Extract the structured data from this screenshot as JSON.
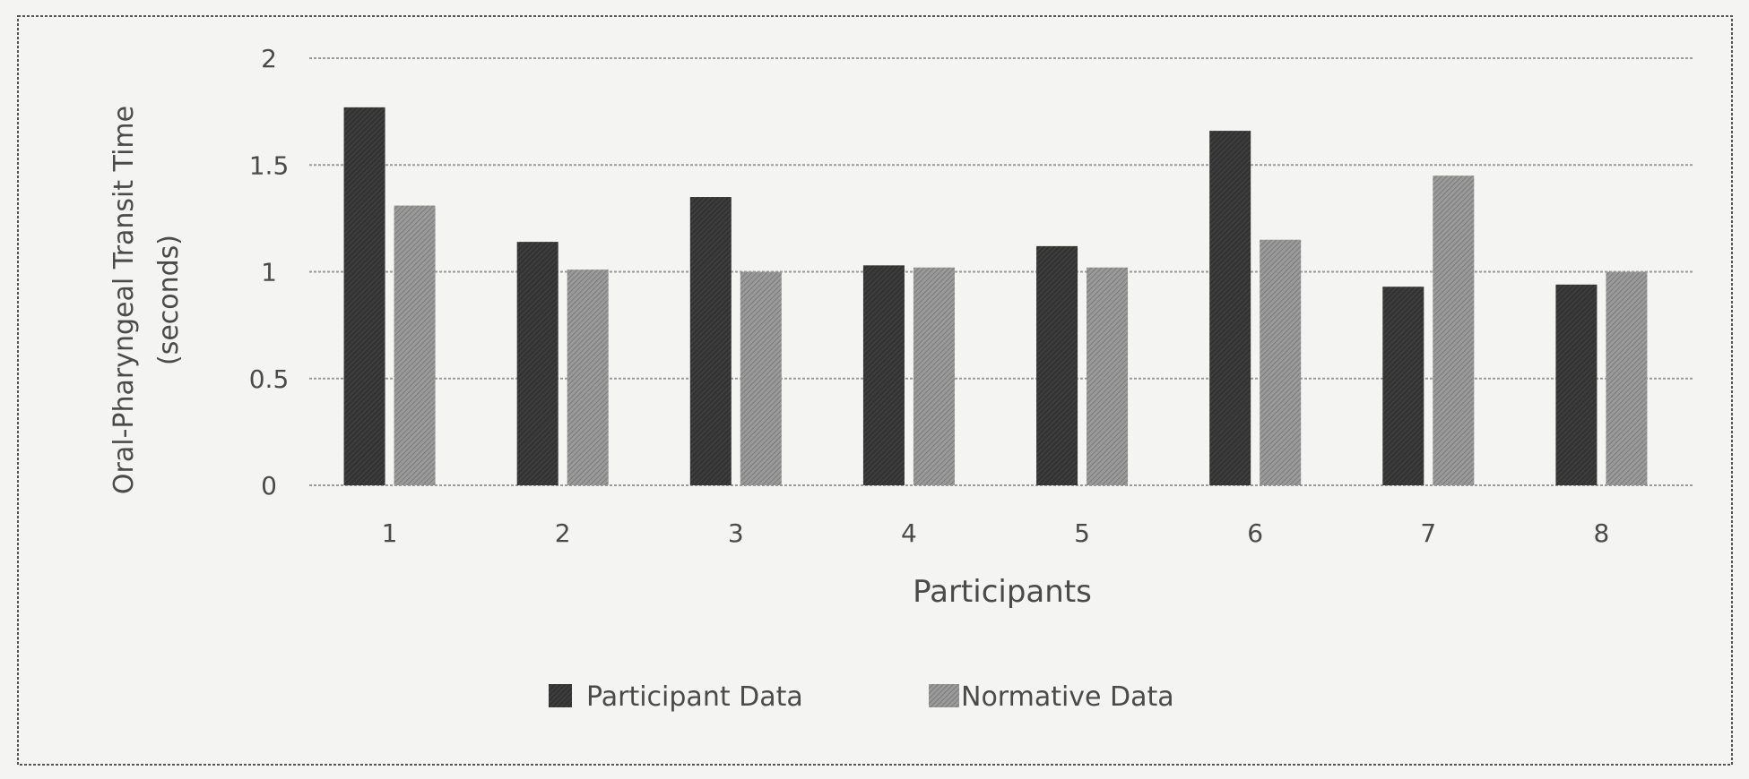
{
  "chart_data": {
    "type": "bar",
    "title": "",
    "xlabel": "Participants",
    "ylabel": "Oral-Pharyngeal Transit Time (seconds)",
    "ylabel_lines": [
      "Oral-Pharyngeal Transit Time",
      "(seconds)"
    ],
    "categories": [
      "1",
      "2",
      "3",
      "4",
      "5",
      "6",
      "7",
      "8"
    ],
    "yticks": [
      "0",
      "0.5",
      "1",
      "1.5",
      "2"
    ],
    "ylim": [
      0,
      2
    ],
    "grid": true,
    "legend_position": "bottom",
    "series": [
      {
        "name": "Participant Data",
        "color": "#3a3a3a",
        "values": [
          1.77,
          1.14,
          1.35,
          1.03,
          1.12,
          1.66,
          0.93,
          0.94
        ]
      },
      {
        "name": "Normative Data",
        "color": "#8e8e8e",
        "values": [
          1.31,
          1.01,
          1.0,
          1.02,
          1.02,
          1.15,
          1.45,
          1.0
        ]
      }
    ]
  }
}
